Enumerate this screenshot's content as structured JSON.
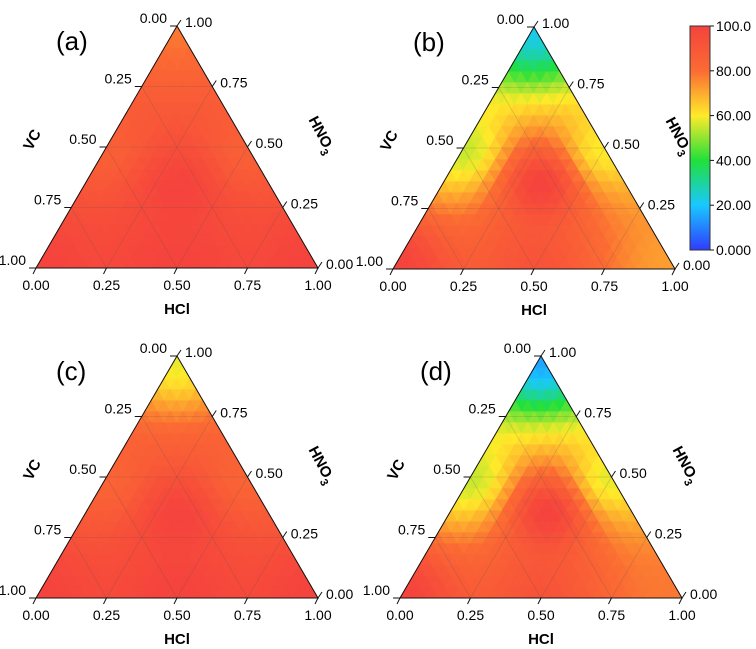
{
  "chart_data": {
    "type": "ternary-contour",
    "value_range": [
      0,
      100
    ],
    "axes": {
      "left": "VC",
      "right": "HNO3",
      "right_main": "HNO",
      "right_sub": "3",
      "bottom": "HCl"
    },
    "axis_ticks": [
      "0.00",
      "0.25",
      "0.50",
      "0.75",
      "1.00"
    ],
    "colorbar": {
      "ticks": [
        "0.000",
        "20.00",
        "40.00",
        "60.00",
        "80.00",
        "100.0"
      ],
      "tick_values": [
        0,
        20,
        40,
        60,
        80,
        100
      ],
      "colors": [
        "#2f3cff",
        "#19c8ff",
        "#21e03a",
        "#ffea2a",
        "#fb6b33",
        "#f5433d"
      ]
    },
    "panels": [
      {
        "label": "(a)",
        "apex_value": 78,
        "corner_values": {
          "VC": 100,
          "HNO3": 78,
          "HCl": 100
        },
        "hotspot": {
          "VC": 0.33,
          "HNO3": 0.33,
          "HCl": 0.34,
          "value": 100
        },
        "edge_midpoints": {
          "VC-HNO3": 86,
          "HNO3-HCl": 86,
          "VC-HCl": 100
        }
      },
      {
        "label": "(b)",
        "apex_value": 22,
        "corner_values": {
          "VC": 100,
          "HNO3": 22,
          "HCl": 72
        },
        "hotspot": {
          "VC": 0.3,
          "HNO3": 0.35,
          "HCl": 0.35,
          "value": 100
        },
        "edge_midpoints": {
          "VC-HNO3": 55,
          "HNO3-HCl": 60,
          "VC-HCl": 92
        }
      },
      {
        "label": "(c)",
        "apex_value": 58,
        "corner_values": {
          "VC": 100,
          "HNO3": 58,
          "HCl": 100
        },
        "hotspot": {
          "VC": 0.33,
          "HNO3": 0.33,
          "HCl": 0.34,
          "value": 100
        },
        "edge_midpoints": {
          "VC-HNO3": 84,
          "HNO3-HCl": 84,
          "VC-HCl": 100
        }
      },
      {
        "label": "(d)",
        "apex_value": 15,
        "corner_values": {
          "VC": 100,
          "HNO3": 15,
          "HCl": 78
        },
        "hotspot": {
          "VC": 0.3,
          "HNO3": 0.35,
          "HCl": 0.35,
          "value": 100
        },
        "edge_midpoints": {
          "VC-HNO3": 55,
          "HNO3-HCl": 58,
          "VC-HCl": 92
        }
      }
    ]
  }
}
